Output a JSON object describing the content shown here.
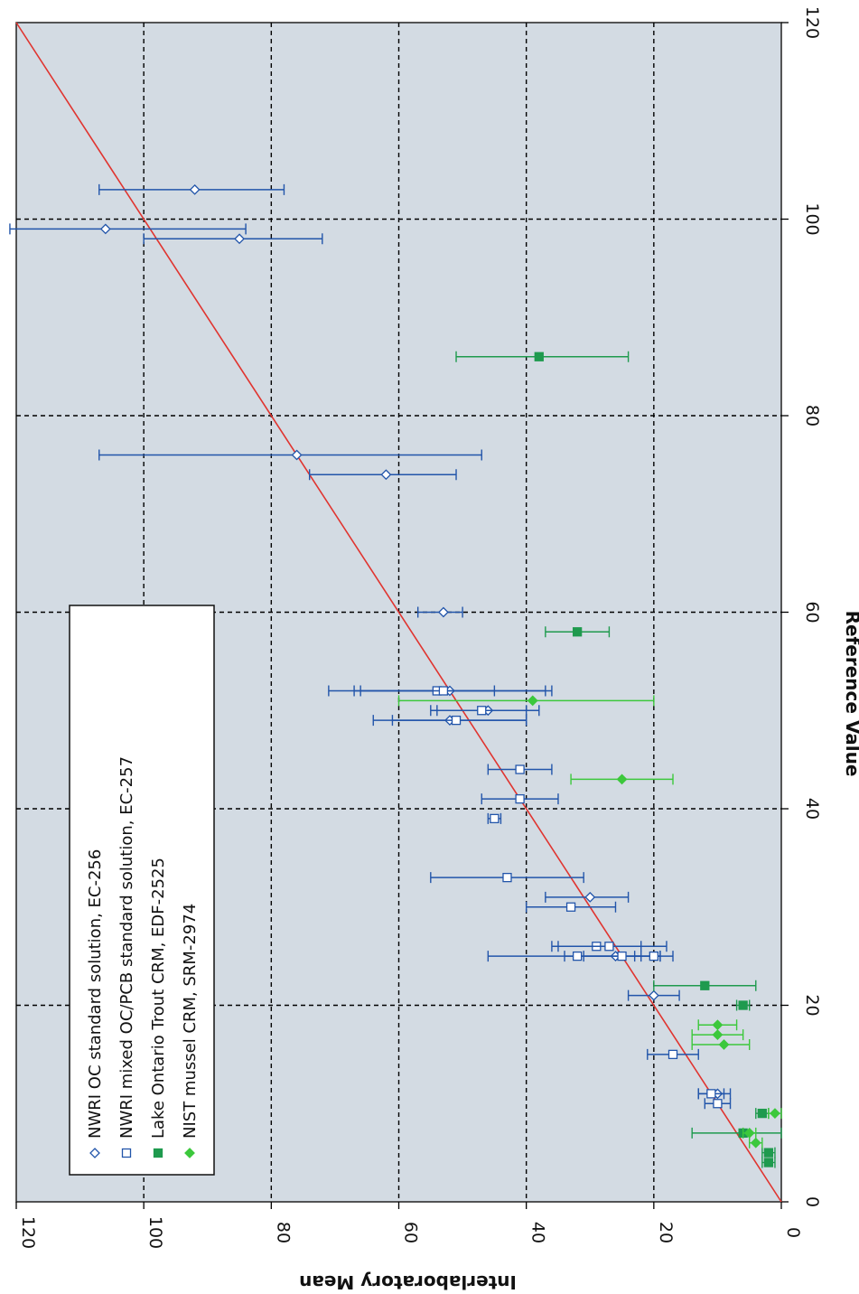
{
  "chart_data": {
    "type": "scatter",
    "orientation": "rotated-90-clockwise",
    "xlabel": "Reference Value",
    "ylabel": "Interlaboratory Mean",
    "xlim": [
      0,
      120
    ],
    "ylim": [
      0,
      120
    ],
    "x_ticks": [
      "0",
      "20",
      "40",
      "60",
      "80",
      "100",
      "120"
    ],
    "y_ticks": [
      "0",
      "20",
      "40",
      "60",
      "80",
      "100",
      "120"
    ],
    "grid": true,
    "legend_position": "bottom-left",
    "reference_line": {
      "x": [
        0,
        120
      ],
      "y": [
        0,
        120
      ],
      "color": "#e0342f"
    },
    "series": [
      {
        "name": "NWRI OC standard solution, EC-256",
        "marker": "diamond-open",
        "color": "#2255aa",
        "points": [
          {
            "x": 103,
            "y": 92,
            "lo": 78,
            "hi": 107
          },
          {
            "x": 99,
            "y": 106,
            "lo": 84,
            "hi": 121
          },
          {
            "x": 98,
            "y": 85,
            "lo": 72,
            "hi": 100
          },
          {
            "x": 76,
            "y": 76,
            "lo": 47,
            "hi": 107
          },
          {
            "x": 74,
            "y": 62,
            "lo": 51,
            "hi": 74
          },
          {
            "x": 60,
            "y": 53,
            "lo": 50,
            "hi": 57
          },
          {
            "x": 52,
            "y": 52,
            "lo": 36,
            "hi": 67
          },
          {
            "x": 50,
            "y": 46,
            "lo": 38,
            "hi": 54
          },
          {
            "x": 49,
            "y": 52,
            "lo": 40,
            "hi": 64
          },
          {
            "x": 31,
            "y": 30,
            "lo": 24,
            "hi": 37
          },
          {
            "x": 25,
            "y": 26,
            "lo": 19,
            "hi": 34
          },
          {
            "x": 21,
            "y": 20,
            "lo": 16,
            "hi": 24
          },
          {
            "x": 11,
            "y": 10,
            "lo": 8,
            "hi": 13
          }
        ]
      },
      {
        "name": "NWRI mixed OC/PCB standard solution, EC-257",
        "marker": "square-open",
        "color": "#2255aa",
        "points": [
          {
            "x": 52,
            "y": 54,
            "lo": 37,
            "hi": 71
          },
          {
            "x": 52,
            "y": 53,
            "lo": 45,
            "hi": 66
          },
          {
            "x": 50,
            "y": 47,
            "lo": 40,
            "hi": 55
          },
          {
            "x": 49,
            "y": 51,
            "lo": 40,
            "hi": 61
          },
          {
            "x": 44,
            "y": 41,
            "lo": 36,
            "hi": 46
          },
          {
            "x": 41,
            "y": 41,
            "lo": 35,
            "hi": 47
          },
          {
            "x": 39,
            "y": 45,
            "lo": 44,
            "hi": 46
          },
          {
            "x": 33,
            "y": 43,
            "lo": 31,
            "hi": 55
          },
          {
            "x": 30,
            "y": 33,
            "lo": 26,
            "hi": 40
          },
          {
            "x": 26,
            "y": 29,
            "lo": 22,
            "hi": 36
          },
          {
            "x": 26,
            "y": 27,
            "lo": 18,
            "hi": 35
          },
          {
            "x": 25,
            "y": 32,
            "lo": 22,
            "hi": 46
          },
          {
            "x": 25,
            "y": 25,
            "lo": 19,
            "hi": 31
          },
          {
            "x": 25,
            "y": 20,
            "lo": 17,
            "hi": 23
          },
          {
            "x": 15,
            "y": 17,
            "lo": 13,
            "hi": 21
          },
          {
            "x": 11,
            "y": 11,
            "lo": 9,
            "hi": 13
          },
          {
            "x": 10,
            "y": 10,
            "lo": 8,
            "hi": 12
          }
        ]
      },
      {
        "name": "Lake Ontario Trout CRM, EDF-2525",
        "marker": "square-filled",
        "color": "#1f9a4e",
        "points": [
          {
            "x": 86,
            "y": 38,
            "lo": 24,
            "hi": 51
          },
          {
            "x": 58,
            "y": 32,
            "lo": 27,
            "hi": 37
          },
          {
            "x": 22,
            "y": 12,
            "lo": 4,
            "hi": 20
          },
          {
            "x": 20,
            "y": 6,
            "lo": 5,
            "hi": 7
          },
          {
            "x": 9,
            "y": 3,
            "lo": 2,
            "hi": 4
          },
          {
            "x": 7,
            "y": 6,
            "lo": 0,
            "hi": 14
          },
          {
            "x": 5,
            "y": 2,
            "lo": 1,
            "hi": 3
          },
          {
            "x": 4,
            "y": 2,
            "lo": 1,
            "hi": 3
          }
        ]
      },
      {
        "name": "NIST mussel CRM, SRM-2974",
        "marker": "diamond-filled",
        "color": "#3cc83c",
        "points": [
          {
            "x": 51,
            "y": 39,
            "lo": 20,
            "hi": 60
          },
          {
            "x": 43,
            "y": 25,
            "lo": 17,
            "hi": 33
          },
          {
            "x": 18,
            "y": 10,
            "lo": 7,
            "hi": 13
          },
          {
            "x": 17,
            "y": 10,
            "lo": 6,
            "hi": 14
          },
          {
            "x": 16,
            "y": 9,
            "lo": 5,
            "hi": 14
          },
          {
            "x": 9,
            "y": 1,
            "lo": 0,
            "hi": 2
          },
          {
            "x": 7,
            "y": 5,
            "lo": 4,
            "hi": 6
          },
          {
            "x": 6,
            "y": 4,
            "lo": 3,
            "hi": 5
          }
        ]
      }
    ]
  }
}
